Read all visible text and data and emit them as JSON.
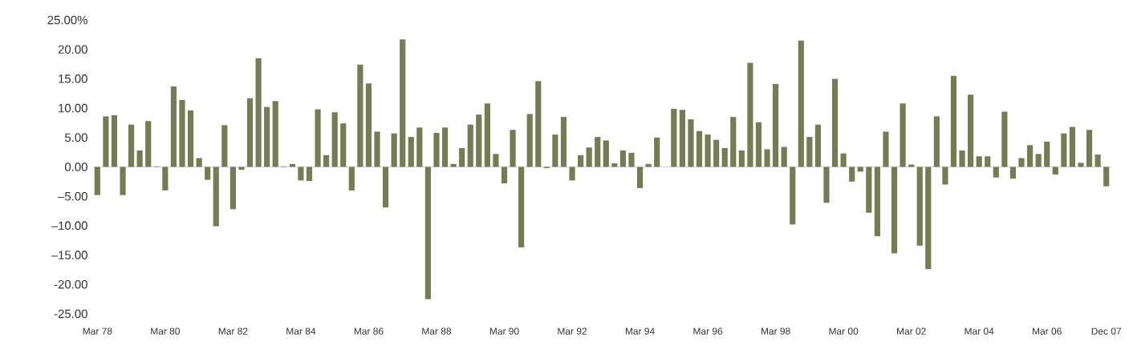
{
  "chart_data": {
    "type": "bar",
    "color": "#767b55",
    "categories": [
      "Mar 78",
      null,
      null,
      null,
      null,
      null,
      null,
      null,
      "Mar 80",
      null,
      null,
      null,
      null,
      null,
      null,
      null,
      "Mar 82",
      null,
      null,
      null,
      null,
      null,
      null,
      null,
      "Mar 84",
      null,
      null,
      null,
      null,
      null,
      null,
      null,
      "Mar 86",
      null,
      null,
      null,
      null,
      null,
      null,
      null,
      "Mar 88",
      null,
      null,
      null,
      null,
      null,
      null,
      null,
      "Mar 90",
      null,
      null,
      null,
      null,
      null,
      null,
      null,
      "Mar 92",
      null,
      null,
      null,
      null,
      null,
      null,
      null,
      "Mar 94",
      null,
      null,
      null,
      null,
      null,
      null,
      null,
      "Mar 96",
      null,
      null,
      null,
      null,
      null,
      null,
      null,
      "Mar 98",
      null,
      null,
      null,
      null,
      null,
      null,
      null,
      "Mar 00",
      null,
      null,
      null,
      null,
      null,
      null,
      null,
      "Mar 02",
      null,
      null,
      null,
      null,
      null,
      null,
      null,
      "Mar 04",
      null,
      null,
      null,
      null,
      null,
      null,
      null,
      "Mar 06",
      null,
      null,
      null,
      null,
      null,
      null,
      "Dec 07"
    ],
    "values": [
      -4.8,
      8.6,
      8.8,
      -4.8,
      7.2,
      2.8,
      7.8,
      0.1,
      -4.0,
      13.7,
      11.4,
      9.6,
      1.5,
      -2.2,
      -10.1,
      7.1,
      -7.2,
      -0.5,
      11.7,
      18.5,
      10.2,
      11.2,
      0.1,
      0.5,
      -2.3,
      -2.4,
      9.8,
      2.0,
      9.3,
      7.4,
      -4.0,
      17.4,
      14.2,
      6.0,
      -6.9,
      5.7,
      21.7,
      5.1,
      6.7,
      -22.5,
      5.8,
      6.7,
      0.5,
      3.2,
      7.2,
      8.9,
      10.8,
      2.2,
      -2.8,
      6.3,
      -13.7,
      9.0,
      14.6,
      -0.2,
      5.5,
      8.5,
      -2.3,
      2.0,
      3.3,
      5.1,
      4.5,
      0.6,
      2.8,
      2.4,
      -3.6,
      0.5,
      5.0,
      0.0,
      9.9,
      9.7,
      8.1,
      6.1,
      5.5,
      4.6,
      3.2,
      8.5,
      2.8,
      17.7,
      7.6,
      3.0,
      14.1,
      3.4,
      -9.8,
      21.5,
      5.1,
      7.2,
      -6.1,
      15.0,
      2.3,
      -2.5,
      -0.8,
      -7.8,
      -11.8,
      6.0,
      -14.7,
      10.8,
      0.4,
      -13.4,
      -17.4,
      8.6,
      -3.0,
      15.5,
      2.8,
      12.3,
      1.8,
      1.8,
      -1.8,
      9.4,
      -2.0,
      1.5,
      3.7,
      2.2,
      4.3,
      -1.3,
      5.7,
      6.8,
      0.7,
      6.3,
      2.1,
      -3.3
    ],
    "ylim": [
      -25,
      25
    ],
    "yticks": [
      {
        "value": 25,
        "label": "25.00%"
      },
      {
        "value": 20,
        "label": "20.00"
      },
      {
        "value": 15,
        "label": "15.00"
      },
      {
        "value": 10,
        "label": "10.00"
      },
      {
        "value": 5,
        "label": "5.00"
      },
      {
        "value": 0,
        "label": "0.00"
      },
      {
        "value": -5,
        "label": "–5.00"
      },
      {
        "value": -10,
        "label": "–10.00"
      },
      {
        "value": -15,
        "label": "–15.00"
      },
      {
        "value": -20,
        "label": "-20.00"
      },
      {
        "value": -25,
        "label": "-25.00"
      }
    ]
  }
}
